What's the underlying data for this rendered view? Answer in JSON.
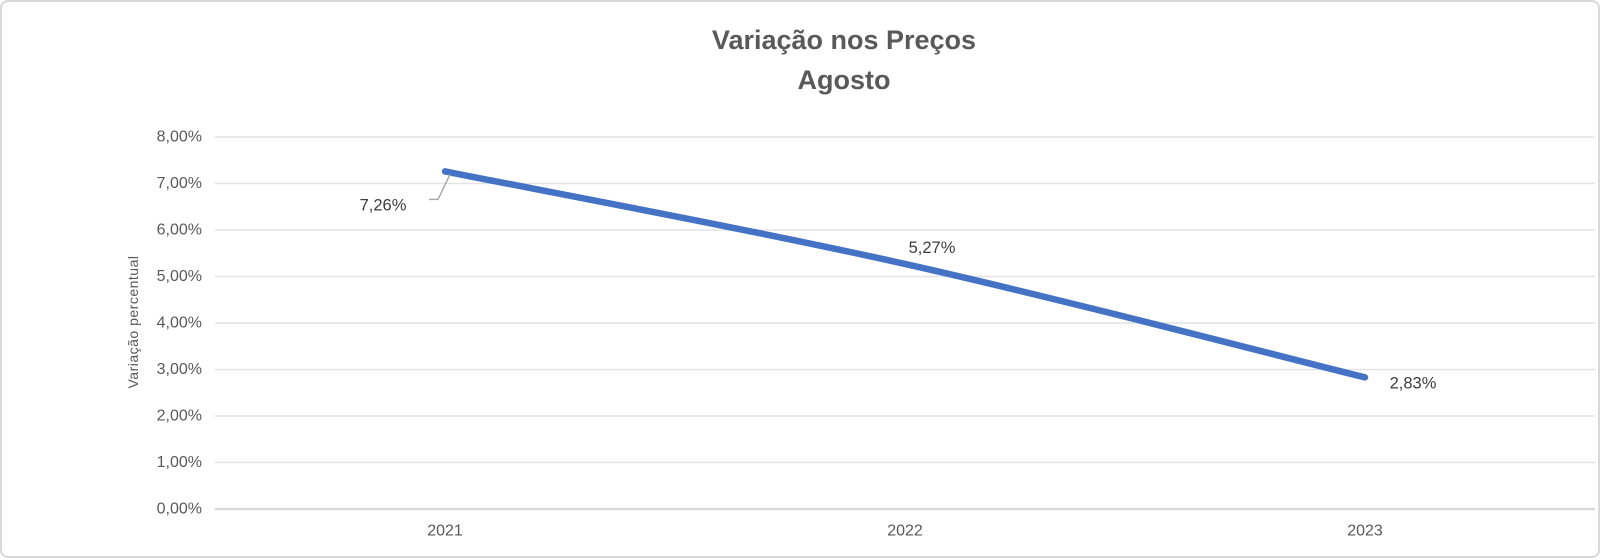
{
  "chart": {
    "title_line1": "Variação nos Preços",
    "title_line2": "Agosto",
    "y_axis_title": "Variação percentual"
  },
  "chart_data": {
    "type": "line",
    "title": "Variação nos Preços Agosto",
    "categories": [
      "2021",
      "2022",
      "2023"
    ],
    "series": [
      {
        "name": "Variação percentual",
        "values": [
          7.26,
          5.27,
          2.83
        ]
      }
    ],
    "data_labels": [
      "7,26%",
      "5,27%",
      "2,83%"
    ],
    "y_tick_labels": [
      "0,00%",
      "1,00%",
      "2,00%",
      "3,00%",
      "4,00%",
      "5,00%",
      "6,00%",
      "7,00%",
      "8,00%"
    ],
    "xlabel": "",
    "ylabel": "Variação percentual",
    "ylim": [
      0,
      8
    ],
    "y_tick_step": 1,
    "grid": true,
    "legend": "none",
    "smoothed": true
  },
  "colors": {
    "line": "#4472C4",
    "gridline": "#e2e2e2",
    "axis_line": "#d9d9d9",
    "title_text": "#595959",
    "tick_text": "#595959",
    "data_label_text": "#3d3d3d",
    "leader_line": "#a6a6a6",
    "card_border": "#d8d8d8"
  }
}
